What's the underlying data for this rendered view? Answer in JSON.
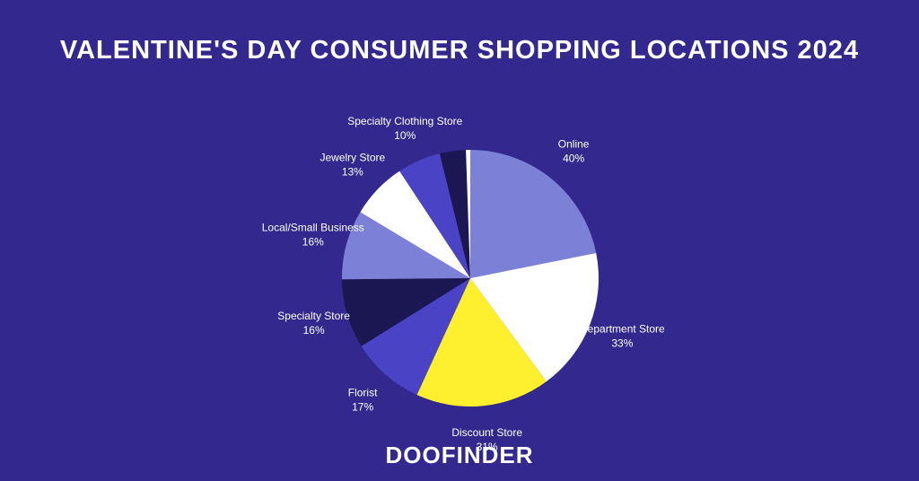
{
  "chart_data": {
    "type": "pie",
    "title": "VALENTINE'S DAY CONSUMER SHOPPING LOCATIONS 2024",
    "categories": [
      "Online",
      "Department Store",
      "Discount Store",
      "Florist",
      "Specialty Store",
      "Local/Small Business",
      "Jewelry Store",
      "Specialty Clothing Store",
      null,
      null
    ],
    "values": [
      40,
      33,
      31,
      17,
      16,
      16,
      13,
      10,
      6,
      1
    ],
    "value_labels": [
      "40%",
      "33%",
      "31%",
      "17%",
      "16%",
      "16%",
      "13%",
      "10%",
      null,
      null
    ],
    "colors": [
      "#7c80d6",
      "#ffffff",
      "#fff02f",
      "#4b43c6",
      "#1b1752",
      "#7c80d6",
      "#ffffff",
      "#4b43c6",
      "#1b1752",
      "#ffffff"
    ]
  },
  "footer": {
    "logo": "DOOFINDER"
  }
}
